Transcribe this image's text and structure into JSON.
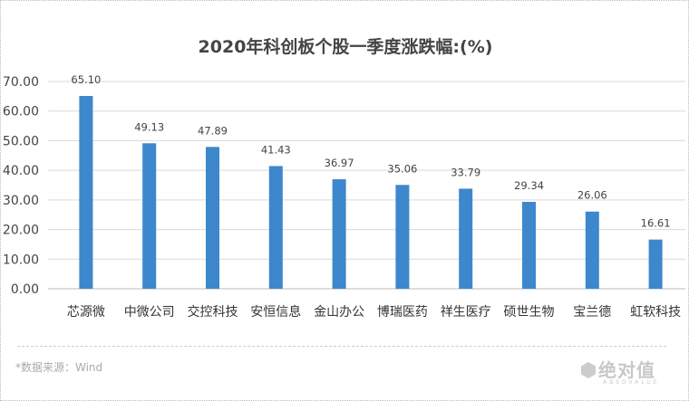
{
  "chart_data": {
    "type": "bar",
    "title": "2020年科创板个股一季度涨跌幅:(%)",
    "categories": [
      "芯源微",
      "中微公司",
      "交控科技",
      "安恒信息",
      "金山办公",
      "博瑞医药",
      "祥生医疗",
      "硕世生物",
      "宝兰德",
      "虹软科技"
    ],
    "values": [
      65.1,
      49.13,
      47.89,
      41.43,
      36.97,
      35.06,
      33.79,
      29.34,
      26.06,
      16.61
    ],
    "value_labels": [
      "65.10",
      "49.13",
      "47.89",
      "41.43",
      "36.97",
      "35.06",
      "33.79",
      "29.34",
      "26.06",
      "16.61"
    ],
    "ylim": [
      0,
      70
    ],
    "yticks": [
      "0.00",
      "10.00",
      "20.00",
      "30.00",
      "40.00",
      "50.00",
      "60.00",
      "70.00"
    ],
    "grid": true,
    "xlabel": "",
    "ylabel": "",
    "bar_color": "#3d87cc"
  },
  "footer": {
    "source": "*数据来源：Wind",
    "logo": "绝对值",
    "logo_sub": "ABSOVALUE"
  }
}
